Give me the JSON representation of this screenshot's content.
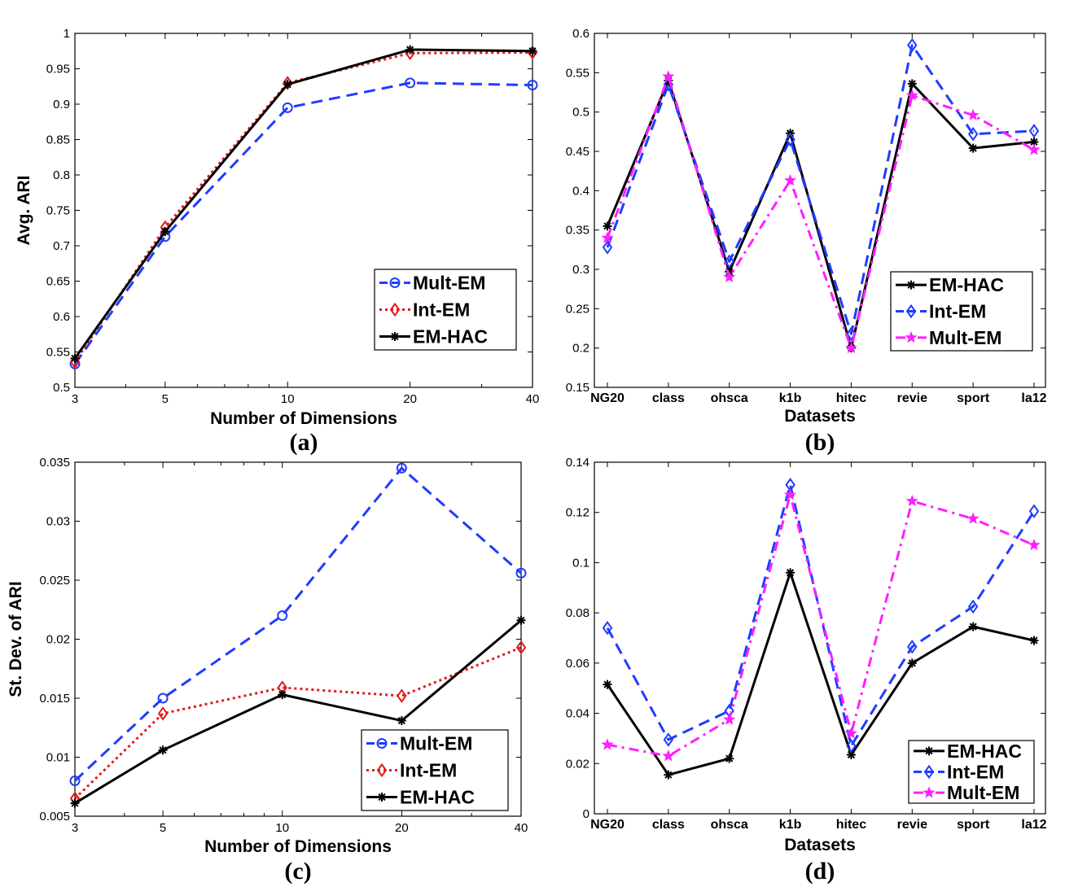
{
  "chart_data": [
    {
      "id": "a",
      "type": "line",
      "panel_label": "(a)",
      "title": "",
      "xlabel": "Number of Dimensions",
      "ylabel": "Avg. ARI",
      "x_scale": "log",
      "xlim": [
        3,
        40
      ],
      "x": [
        3,
        5,
        10,
        20,
        40
      ],
      "x_ticks": [
        3,
        5,
        10,
        20,
        40
      ],
      "ylim": [
        0.5,
        1
      ],
      "y_ticks": [
        "0.5",
        "0.55",
        "0.6",
        "0.65",
        "0.7",
        "0.75",
        "0.8",
        "0.85",
        "0.9",
        "0.95",
        "1"
      ],
      "legend_position": "bottom-right",
      "series": [
        {
          "name": "Mult-EM",
          "color": "#1f3cff",
          "style": "dashed",
          "marker": "circle",
          "values": [
            0.533,
            0.713,
            0.895,
            0.93,
            0.927
          ]
        },
        {
          "name": "Int-EM",
          "color": "#e21a1a",
          "style": "dotted",
          "marker": "diamond",
          "values": [
            0.536,
            0.726,
            0.93,
            0.972,
            0.973
          ]
        },
        {
          "name": "EM-HAC",
          "color": "#000000",
          "style": "solid",
          "marker": "asterisk",
          "values": [
            0.541,
            0.72,
            0.928,
            0.977,
            0.975
          ]
        }
      ]
    },
    {
      "id": "b",
      "type": "line",
      "panel_label": "(b)",
      "title": "",
      "xlabel": "Datasets",
      "ylabel": "",
      "categories": [
        "NG20",
        "class",
        "ohsca",
        "k1b",
        "hitec",
        "revie",
        "sport",
        "la12"
      ],
      "ylim": [
        0.15,
        0.6
      ],
      "y_ticks": [
        "0.15",
        "0.2",
        "0.25",
        "0.3",
        "0.35",
        "0.4",
        "0.45",
        "0.5",
        "0.55",
        "0.6"
      ],
      "legend_position": "bottom-right",
      "series": [
        {
          "name": "EM-HAC",
          "color": "#000000",
          "style": "solid",
          "marker": "asterisk",
          "values": [
            0.355,
            0.54,
            0.297,
            0.473,
            0.2,
            0.536,
            0.454,
            0.462
          ]
        },
        {
          "name": "Int-EM",
          "color": "#1f3cff",
          "style": "dashed",
          "marker": "diamond",
          "values": [
            0.328,
            0.535,
            0.31,
            0.465,
            0.218,
            0.585,
            0.472,
            0.476
          ]
        },
        {
          "name": "Mult-EM",
          "color": "#ff1fff",
          "style": "dashdot",
          "marker": "star",
          "values": [
            0.34,
            0.545,
            0.29,
            0.413,
            0.2,
            0.521,
            0.496,
            0.452
          ]
        }
      ]
    },
    {
      "id": "c",
      "type": "line",
      "panel_label": "(c)",
      "title": "",
      "xlabel": "Number of Dimensions",
      "ylabel": "St. Dev. of ARI",
      "x_scale": "log",
      "xlim": [
        3,
        40
      ],
      "x": [
        3,
        5,
        10,
        20,
        40
      ],
      "x_ticks": [
        3,
        5,
        10,
        20,
        40
      ],
      "ylim": [
        0.005,
        0.035
      ],
      "y_ticks": [
        "0.005",
        "0.01",
        "0.015",
        "0.02",
        "0.025",
        "0.03",
        "0.035"
      ],
      "legend_position": "bottom-right",
      "series": [
        {
          "name": "Mult-EM",
          "color": "#1f3cff",
          "style": "dashed",
          "marker": "circle",
          "values": [
            0.008,
            0.015,
            0.022,
            0.0345,
            0.0256
          ]
        },
        {
          "name": "Int-EM",
          "color": "#e21a1a",
          "style": "dotted",
          "marker": "diamond",
          "values": [
            0.0065,
            0.0137,
            0.0159,
            0.0152,
            0.0193
          ]
        },
        {
          "name": "EM-HAC",
          "color": "#000000",
          "style": "solid",
          "marker": "asterisk",
          "values": [
            0.0061,
            0.0106,
            0.0153,
            0.0131,
            0.0216
          ]
        }
      ]
    },
    {
      "id": "d",
      "type": "line",
      "panel_label": "(d)",
      "title": "",
      "xlabel": "Datasets",
      "ylabel": "",
      "categories": [
        "NG20",
        "class",
        "ohsca",
        "k1b",
        "hitec",
        "revie",
        "sport",
        "la12"
      ],
      "ylim": [
        0,
        0.14
      ],
      "y_ticks": [
        "0",
        "0.02",
        "0.04",
        "0.06",
        "0.08",
        "0.1",
        "0.12",
        "0.14"
      ],
      "legend_position": "bottom-right",
      "series": [
        {
          "name": "EM-HAC",
          "color": "#000000",
          "style": "solid",
          "marker": "asterisk",
          "values": [
            0.0515,
            0.0155,
            0.022,
            0.096,
            0.0235,
            0.06,
            0.0745,
            0.069
          ]
        },
        {
          "name": "Int-EM",
          "color": "#1f3cff",
          "style": "dashed",
          "marker": "diamond",
          "values": [
            0.074,
            0.0295,
            0.041,
            0.131,
            0.027,
            0.0665,
            0.0825,
            0.1205
          ]
        },
        {
          "name": "Mult-EM",
          "color": "#ff1fff",
          "style": "dashdot",
          "marker": "star",
          "values": [
            0.0275,
            0.023,
            0.0375,
            0.127,
            0.032,
            0.1245,
            0.1175,
            0.107
          ]
        }
      ]
    }
  ]
}
